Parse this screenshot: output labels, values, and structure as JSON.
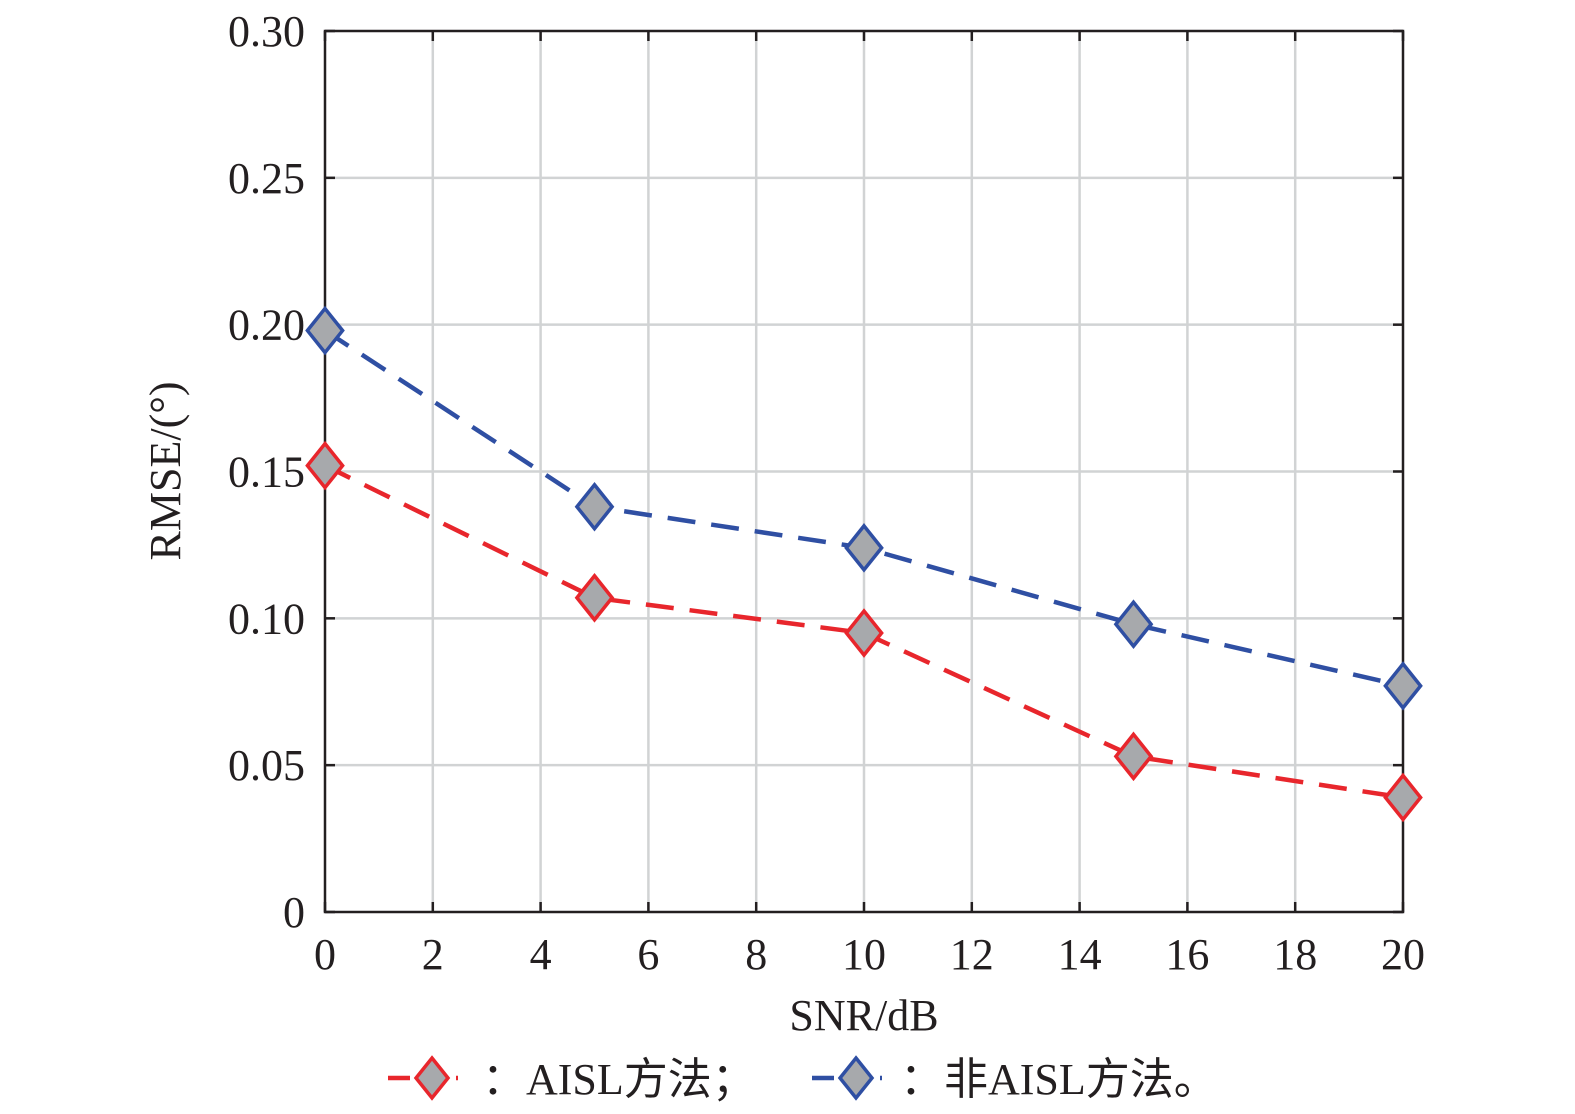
{
  "chart_data": {
    "type": "line",
    "title": "",
    "xlabel": "SNR/dB",
    "ylabel": "RMSE/(°)",
    "xlim": [
      0,
      20
    ],
    "ylim": [
      0,
      0.3
    ],
    "xticks": [
      0,
      2,
      4,
      6,
      8,
      10,
      12,
      14,
      16,
      18,
      20
    ],
    "xtick_labels": [
      "0",
      "2",
      "4",
      "6",
      "8",
      "10",
      "12",
      "14",
      "16",
      "18",
      "20"
    ],
    "yticks": [
      0,
      0.05,
      0.1,
      0.15,
      0.2,
      0.25,
      0.3
    ],
    "ytick_labels": [
      "0",
      "0.05",
      "0.10",
      "0.15",
      "0.20",
      "0.25",
      "0.30"
    ],
    "grid": true,
    "legend_position": "bottom",
    "series": [
      {
        "name": "：AISL方法；",
        "color": "#e8262c",
        "marker": "diamond",
        "marker_fill": "#a7a9ac",
        "line_style": "dashed",
        "x": [
          0,
          5,
          10,
          15,
          20
        ],
        "values": [
          0.152,
          0.107,
          0.095,
          0.053,
          0.039
        ]
      },
      {
        "name": "：非AISL方法。",
        "color": "#2f4fa3",
        "marker": "diamond",
        "marker_fill": "#a7a9ac",
        "line_style": "dashed",
        "x": [
          0,
          5,
          10,
          15,
          20
        ],
        "values": [
          0.198,
          0.138,
          0.124,
          0.098,
          0.077
        ]
      }
    ]
  }
}
